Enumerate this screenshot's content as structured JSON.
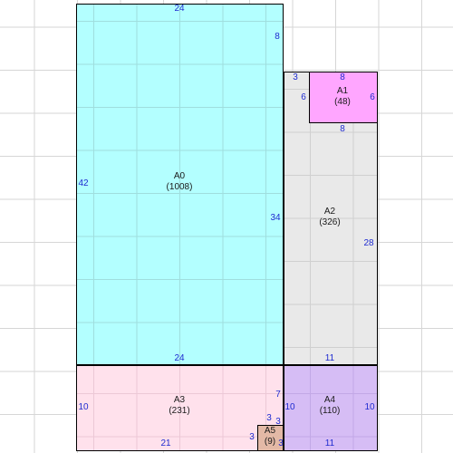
{
  "rooms": {
    "a0": {
      "name": "A0",
      "area": "(1008)"
    },
    "a1": {
      "name": "A1",
      "area": "(48)"
    },
    "a2": {
      "name": "A2",
      "area": "(326)"
    },
    "a3": {
      "name": "A3",
      "area": "(231)"
    },
    "a4": {
      "name": "A4",
      "area": "(110)"
    },
    "a5": {
      "name": "A5",
      "area": "(9)"
    }
  },
  "dimensions": {
    "a0_top": "24",
    "a0_right_upper": "8",
    "a0_left": "42",
    "a0_right_lower": "34",
    "a0_bottom": "24",
    "a2_notch": "3",
    "a1_top": "8",
    "a1_left": "6",
    "a1_right": "6",
    "a1_bottom": "8",
    "a2_right": "28",
    "a2_bottom": "11",
    "a3_left": "10",
    "a3_right_upper": "7",
    "a3_bottom": "21",
    "a4_left": "10",
    "a4_right": "10",
    "a4_bottom": "11",
    "a5_top": "3",
    "a5_left": "3",
    "a5_right_upper": "3",
    "a5_right_lower": "3"
  },
  "colors": {
    "a0": "#b3ffff",
    "a1": "#ffa6ff",
    "a2": "#e9e9e9",
    "a3": "#ffe1ec",
    "a4": "#d6bdf5",
    "a5": "#e3b9a6",
    "dimension_text": "#1f2bd0"
  }
}
